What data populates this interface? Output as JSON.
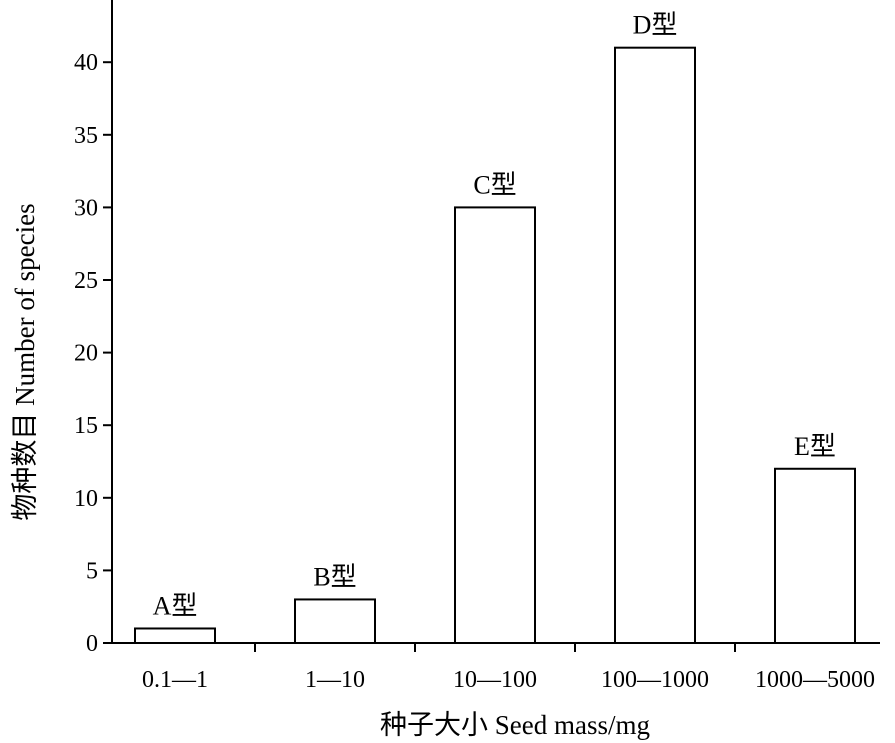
{
  "chart_data": {
    "type": "bar",
    "categories": [
      "0.1—1",
      "1—10",
      "10—100",
      "100—1000",
      "1000—5000"
    ],
    "values": [
      1,
      3,
      30,
      41,
      12
    ],
    "bar_labels": [
      "A型",
      "B型",
      "C型",
      "D型",
      "E型"
    ],
    "xlabel": "种子大小 Seed mass/mg",
    "ylabel": "物种数目   Number of species",
    "ylim": [
      0,
      43
    ],
    "yticks": [
      0,
      5,
      10,
      15,
      20,
      25,
      30,
      35,
      40
    ],
    "grid": false,
    "bar_fill": "#ffffff",
    "bar_stroke": "#000000"
  }
}
